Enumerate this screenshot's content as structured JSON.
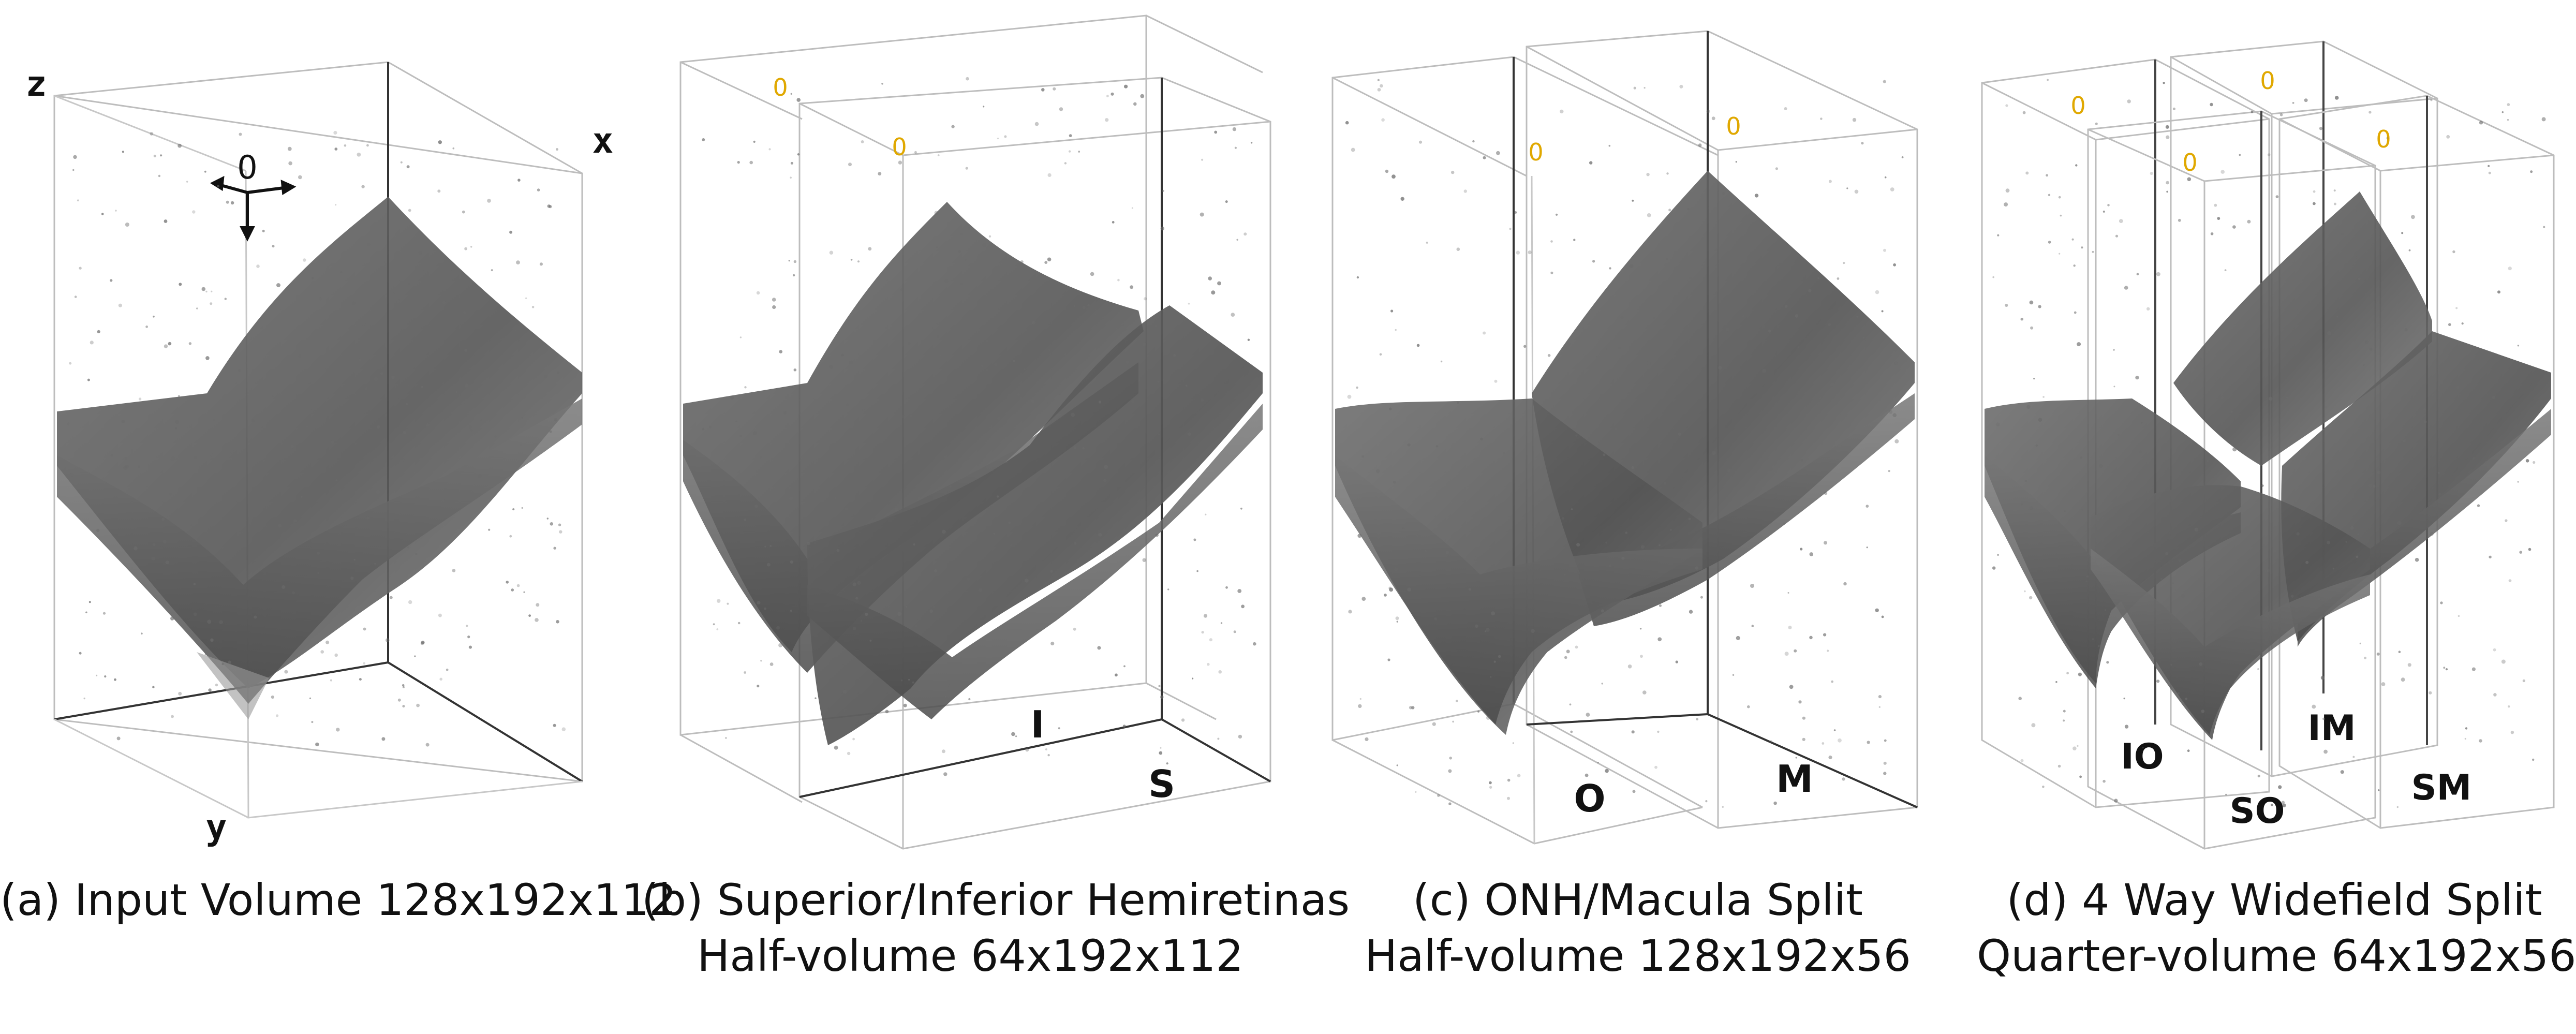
{
  "panels": [
    {
      "caption_line1": "(a) Input Volume 128x192x112",
      "caption_line2": "",
      "axes": {
        "z": "z",
        "x": "x",
        "y": "y",
        "origin": "0"
      },
      "region_labels": []
    },
    {
      "caption_line1": "(b) Superior/Inferior Hemiretinas",
      "caption_line2": "Half-volume 64x192x112",
      "origins": [
        "0",
        "0"
      ],
      "region_labels": [
        "I",
        "S"
      ]
    },
    {
      "caption_line1": "(c) ONH/Macula Split",
      "caption_line2": "Half-volume 128x192x56",
      "origins": [
        "0",
        "0"
      ],
      "region_labels": [
        "O",
        "M"
      ]
    },
    {
      "caption_line1": "(d) 4 Way Widefield Split",
      "caption_line2": "Quarter-volume 64x192x56",
      "origins": [
        "0",
        "0",
        "0",
        "0"
      ],
      "region_labels": [
        "IO",
        "IM",
        "SO",
        "SM"
      ]
    }
  ],
  "colors": {
    "box_line": "#b5b5b5",
    "box_line_dark": "#222222",
    "origin_label": "#e0a800",
    "volume_fill": "#5e5e5e",
    "volume_light": "#8c8c8c"
  }
}
